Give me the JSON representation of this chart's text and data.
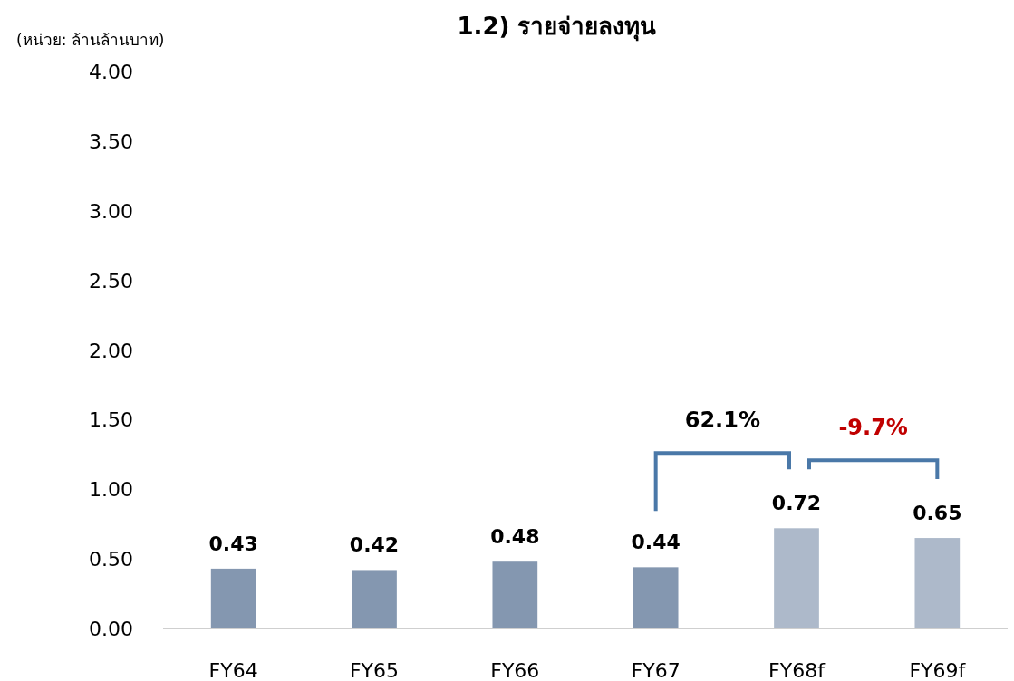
{
  "chart_data": {
    "type": "bar",
    "title": "1.2) รายจ่ายลงทุน",
    "ylabel": "(หน่วย: ล้านล้านบาท)",
    "categories": [
      "FY64",
      "FY65",
      "FY66",
      "FY67",
      "FY68f",
      "FY69f"
    ],
    "values": [
      0.43,
      0.42,
      0.48,
      0.44,
      0.72,
      0.65
    ],
    "colors": [
      "#8497b0",
      "#8497b0",
      "#8497b0",
      "#8497b0",
      "#adb9ca",
      "#adb9ca"
    ],
    "value_labels": [
      "0.43",
      "0.42",
      "0.48",
      "0.44",
      "0.72",
      "0.65"
    ],
    "ylim": [
      0,
      4
    ],
    "yticks": [
      {
        "value": 0,
        "label": "0.00"
      },
      {
        "value": 0.5,
        "label": "0.50"
      },
      {
        "value": 1,
        "label": "1.00"
      },
      {
        "value": 1.5,
        "label": "1.50"
      },
      {
        "value": 2,
        "label": "2.00"
      },
      {
        "value": 2.5,
        "label": "2.50"
      },
      {
        "value": 3,
        "label": "3.00"
      },
      {
        "value": 3.5,
        "label": "3.50"
      },
      {
        "value": 4,
        "label": "4.00"
      }
    ],
    "grid": false,
    "annotations": [
      "62.1%",
      "-9.7%"
    ]
  }
}
